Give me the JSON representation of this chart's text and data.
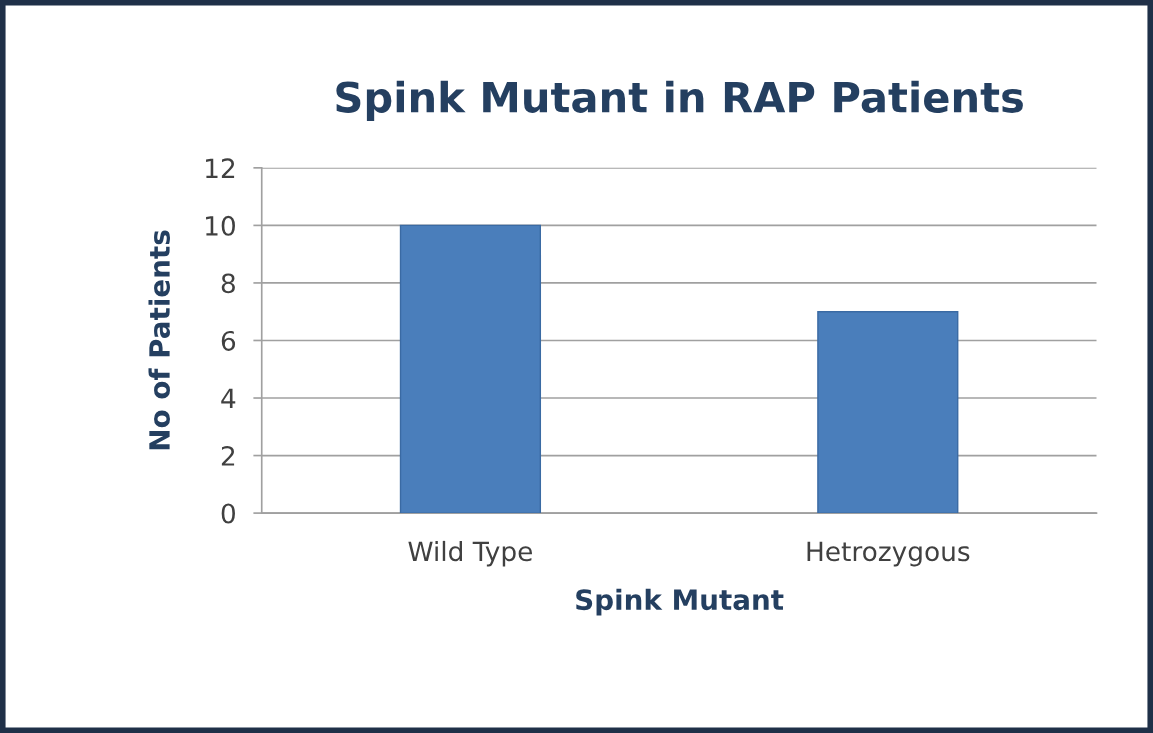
{
  "chart_data": {
    "type": "bar",
    "title": "Spink Mutant in RAP Patients",
    "xlabel": "Spink Mutant",
    "ylabel": "No of Patients",
    "categories": [
      "Wild Type",
      "Hetrozygous"
    ],
    "series": [
      {
        "color": "#4a7ebb",
        "values": [
          10,
          7
        ]
      }
    ],
    "ylim": [
      0,
      12
    ],
    "yticks": [
      0,
      2,
      4,
      6,
      8,
      10,
      12
    ],
    "grid": "y",
    "legend": false
  }
}
